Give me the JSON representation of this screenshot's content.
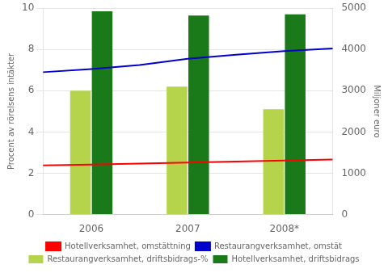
{
  "chart_data": {
    "type": "bar",
    "categories": [
      null,
      "2006",
      null,
      "2007",
      null,
      "2008*",
      null
    ],
    "series": [
      {
        "name": "Restaurangverksamhet, driftsbidrags-%",
        "type": "bar",
        "color": "#b5d44b",
        "values": [
          null,
          6.0,
          null,
          6.2,
          null,
          5.1,
          null
        ]
      },
      {
        "name": "Hotellverksamhet, driftsbidrags",
        "type": "bar",
        "color": "#1a7a1a",
        "values": [
          null,
          9.85,
          null,
          9.65,
          null,
          9.7,
          null
        ]
      },
      {
        "name": "Hotellverksamhet, omstättning",
        "type": "line",
        "color": "#ff0000",
        "values": [
          2.38,
          2.42,
          2.47,
          2.52,
          2.57,
          2.62,
          2.67
        ]
      },
      {
        "name": "Restaurangverksamhet, omstät",
        "type": "line",
        "color": "#0000cd",
        "values": [
          6.9,
          7.05,
          7.25,
          7.55,
          7.75,
          7.92,
          8.05
        ]
      }
    ],
    "ylabel": "Procent av rörelsens intäkter",
    "y2label": "Miljoner euro",
    "ylim": [
      0,
      10
    ],
    "yticks": [
      0,
      2,
      4,
      6,
      8,
      10
    ],
    "y2lim": [
      0,
      5000
    ],
    "y2ticks": [
      0,
      1000,
      2000,
      3000,
      4000,
      5000
    ],
    "grid": "y",
    "legend": "bottom"
  }
}
